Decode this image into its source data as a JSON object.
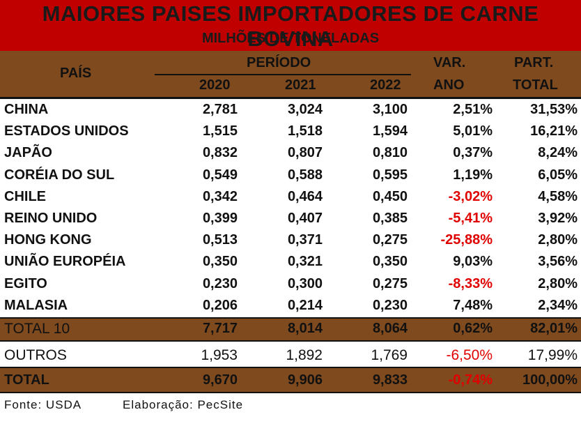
{
  "title": "MAIORES PAISES IMPORTADORES DE CARNE BOVINA",
  "subtitle": "MILHÕES DE TONELADAS",
  "header": {
    "country": "PAÍS",
    "period": "PERÍODO",
    "years": [
      "2020",
      "2021",
      "2022"
    ],
    "var_line1": "VAR.",
    "var_line2": "ANO",
    "part_line1": "PART.",
    "part_line2": "TOTAL"
  },
  "rows": [
    {
      "country": "CHINA",
      "y2020": "2,781",
      "y2021": "3,024",
      "y2022": "3,100",
      "var": "2,51%",
      "part": "31,53%"
    },
    {
      "country": "ESTADOS UNIDOS",
      "y2020": "1,515",
      "y2021": "1,518",
      "y2022": "1,594",
      "var": "5,01%",
      "part": "16,21%"
    },
    {
      "country": "JAPÃO",
      "y2020": "0,832",
      "y2021": "0,807",
      "y2022": "0,810",
      "var": "0,37%",
      "part": "8,24%"
    },
    {
      "country": "CORÉIA DO SUL",
      "y2020": "0,549",
      "y2021": "0,588",
      "y2022": "0,595",
      "var": "1,19%",
      "part": "6,05%"
    },
    {
      "country": "CHILE",
      "y2020": "0,342",
      "y2021": "0,464",
      "y2022": "0,450",
      "var": "-3,02%",
      "part": "4,58%"
    },
    {
      "country": "REINO UNIDO",
      "y2020": "0,399",
      "y2021": "0,407",
      "y2022": "0,385",
      "var": "-5,41%",
      "part": "3,92%"
    },
    {
      "country": "HONG KONG",
      "y2020": "0,513",
      "y2021": "0,371",
      "y2022": "0,275",
      "var": "-25,88%",
      "part": "2,80%"
    },
    {
      "country": "UNIÃO EUROPÉIA",
      "y2020": "0,350",
      "y2021": "0,321",
      "y2022": "0,350",
      "var": "9,03%",
      "part": "3,56%"
    },
    {
      "country": "EGITO",
      "y2020": "0,230",
      "y2021": "0,300",
      "y2022": "0,275",
      "var": "-8,33%",
      "part": "2,80%"
    },
    {
      "country": "MALASIA",
      "y2020": "0,206",
      "y2021": "0,214",
      "y2022": "0,230",
      "var": "7,48%",
      "part": "2,34%"
    }
  ],
  "total10": {
    "country": "TOTAL 10",
    "y2020": "7,717",
    "y2021": "8,014",
    "y2022": "8,064",
    "var": "0,62%",
    "part": "82,01%"
  },
  "outros": {
    "country": "OUTROS",
    "y2020": "1,953",
    "y2021": "1,892",
    "y2022": "1,769",
    "var": "-6,50%",
    "part": "17,99%"
  },
  "total": {
    "country": "TOTAL",
    "y2020": "9,670",
    "y2021": "9,906",
    "y2022": "9,833",
    "var": "-0,74%",
    "part": "100,00%"
  },
  "footer": {
    "source": "Fonte: USDA",
    "credit": "Elaboração: PecSite"
  },
  "colors": {
    "title_bg": "#c00000",
    "header_bg": "#7f4a1e",
    "negative": "#e00000"
  }
}
